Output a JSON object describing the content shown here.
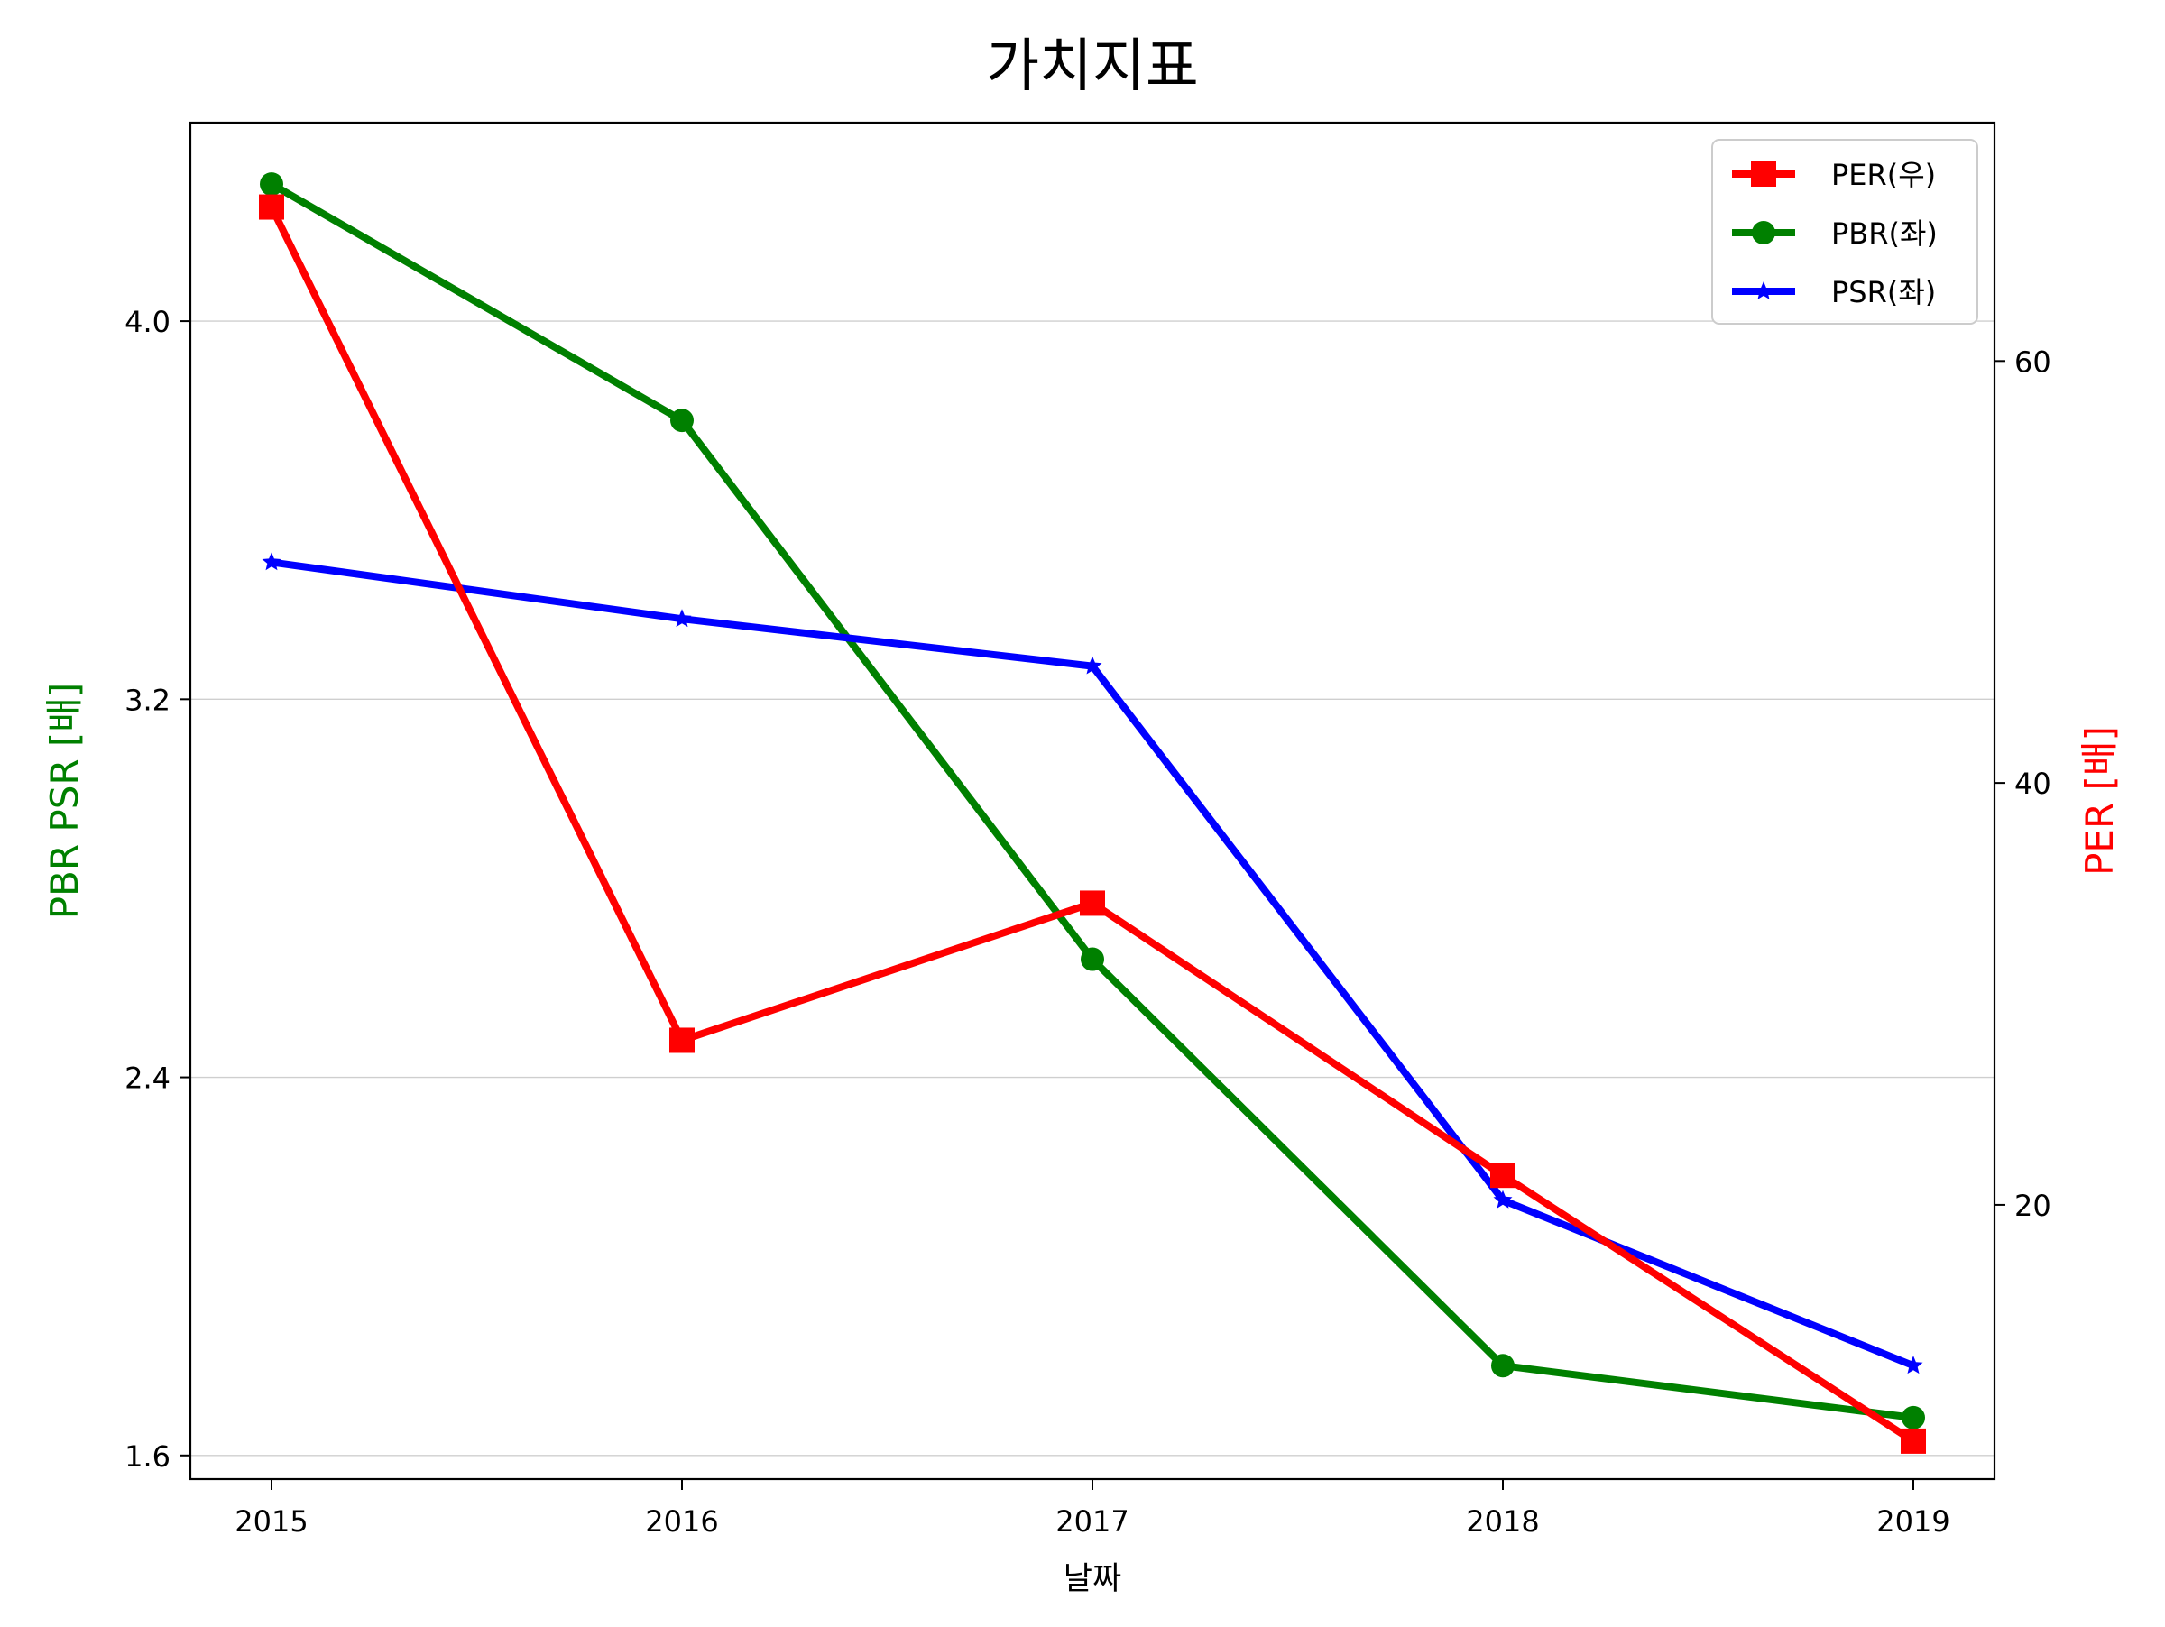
{
  "chart_data": {
    "type": "line",
    "title": "가치지표",
    "xlabel": "날짜",
    "ylabel_left": "PBR PSR [배]",
    "ylabel_right": "PER [배]",
    "categories": [
      "2015",
      "2016",
      "2017",
      "2018",
      "2019"
    ],
    "y_left": {
      "ticks": [
        1.6,
        2.4,
        3.2,
        4.0
      ],
      "tick_labels": [
        "1.6",
        "2.4",
        "3.2",
        "4.0"
      ],
      "range": [
        1.55,
        4.42
      ]
    },
    "y_right": {
      "ticks": [
        20,
        40,
        60
      ],
      "tick_labels": [
        "20",
        "40",
        "60"
      ],
      "range": [
        7.0,
        71.3
      ]
    },
    "grid": "horizontal, left axis",
    "legend_position": "top-right",
    "series": [
      {
        "name": "PER(우)",
        "axis": "right",
        "marker": "square",
        "color": "#ff0000",
        "values": [
          67.3,
          27.8,
          34.3,
          21.4,
          8.8
        ]
      },
      {
        "name": "PBR(좌)",
        "axis": "left",
        "marker": "circle",
        "color": "#008000",
        "values": [
          4.29,
          3.79,
          2.65,
          1.79,
          1.68
        ]
      },
      {
        "name": "PSR(좌)",
        "axis": "left",
        "marker": "star",
        "color": "#0000ff",
        "values": [
          3.49,
          3.37,
          3.27,
          2.14,
          1.79
        ]
      }
    ],
    "colors": {
      "left_axis_label": "#008000",
      "right_axis_label": "#ff0000"
    }
  }
}
